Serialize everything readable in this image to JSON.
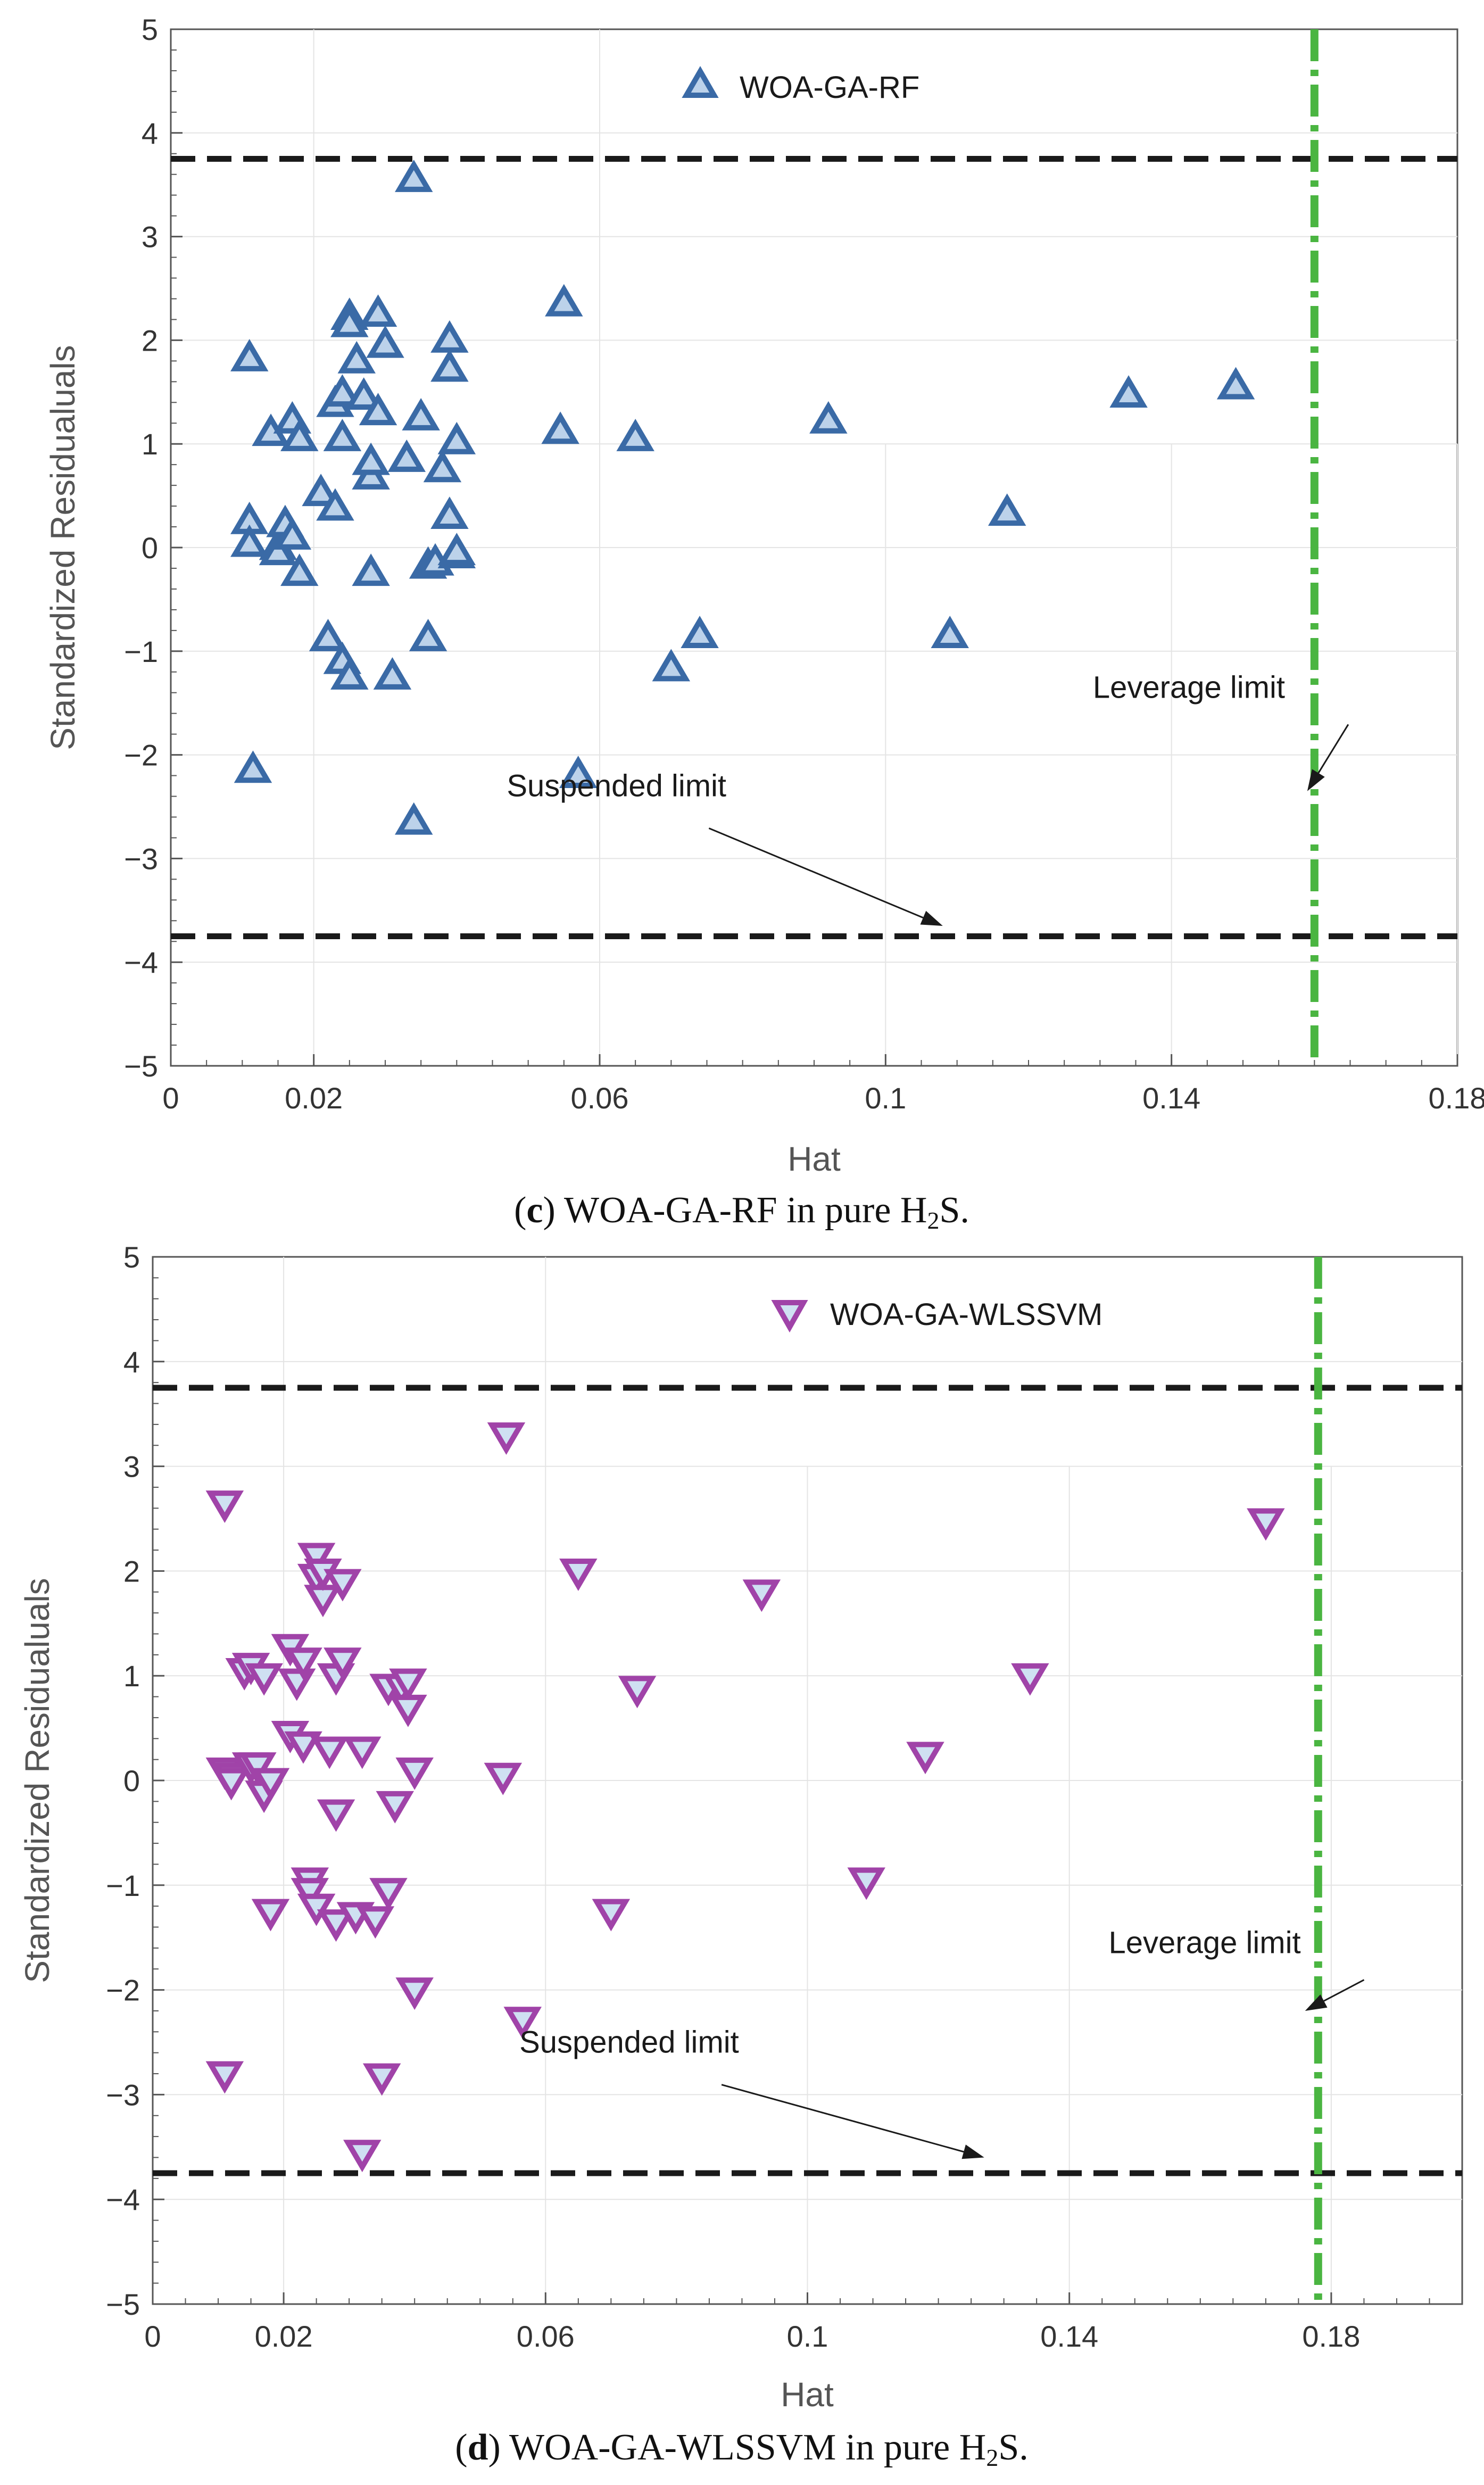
{
  "chart_data": [
    {
      "type": "scatter",
      "panel_label": "c",
      "caption_text": "WOA-GA-RF in pure H",
      "caption_sub": "2",
      "caption_tail": "S.",
      "xlabel": "Hat",
      "ylabel": "Standardized Residualuals",
      "xlim": [
        0,
        0.18
      ],
      "ylim": [
        -5,
        5
      ],
      "xticks": [
        0,
        0.02,
        0.06,
        0.1,
        0.14,
        0.18
      ],
      "xtick_labels": [
        "0",
        "0.02",
        "0.06",
        "0.1",
        "0.14",
        "0.18"
      ],
      "yticks": [
        -5,
        -4,
        -3,
        -2,
        -1,
        0,
        1,
        2,
        3,
        4,
        5
      ],
      "ytick_labels": [
        "−5",
        "−4",
        "−3",
        "−2",
        "−1",
        "0",
        "1",
        "2",
        "3",
        "4",
        "5"
      ],
      "grid": true,
      "legend_position": "top-center",
      "marker": "triangle-up",
      "color": "#3a6aa6",
      "series": [
        {
          "name": "WOA-GA-RF",
          "x": [
            0.011,
            0.011,
            0.011,
            0.0115,
            0.014,
            0.015,
            0.015,
            0.016,
            0.017,
            0.017,
            0.018,
            0.018,
            0.021,
            0.022,
            0.023,
            0.023,
            0.024,
            0.024,
            0.024,
            0.025,
            0.025,
            0.025,
            0.026,
            0.027,
            0.028,
            0.028,
            0.028,
            0.029,
            0.029,
            0.03,
            0.031,
            0.033,
            0.034,
            0.034,
            0.035,
            0.036,
            0.036,
            0.037,
            0.038,
            0.039,
            0.039,
            0.039,
            0.04,
            0.04,
            0.04,
            0.0545,
            0.055,
            0.057,
            0.065,
            0.07,
            0.074,
            0.092,
            0.109,
            0.117,
            0.134,
            0.149
          ],
          "y": [
            1.82,
            0.25,
            0.03,
            -2.15,
            1.1,
            0.0,
            -0.05,
            0.22,
            1.22,
            0.1,
            1.05,
            -0.25,
            0.52,
            -0.88,
            0.38,
            1.38,
            1.48,
            1.05,
            -1.1,
            -1.25,
            2.22,
            2.15,
            1.8,
            1.45,
            0.68,
            0.82,
            -0.25,
            1.3,
            2.25,
            1.95,
            -1.25,
            0.85,
            3.55,
            -2.65,
            1.25,
            -0.88,
            -0.18,
            -0.15,
            0.75,
            2.0,
            1.72,
            0.3,
            1.02,
            -0.08,
            -0.05,
            1.12,
            2.35,
            -2.2,
            1.05,
            -1.17,
            -0.85,
            1.22,
            -0.85,
            0.33,
            1.47,
            1.55
          ]
        }
      ],
      "hlines": [
        3.75,
        -3.75
      ],
      "hline_color": "#1a1a1a",
      "vline": 0.16,
      "vline_color": "#4ab541",
      "annotations": [
        {
          "text": "Leverage limit",
          "tx": 0.129,
          "ty": -1.45,
          "ax": 0.159,
          "ay": -2.35
        },
        {
          "text": "Suspended limit",
          "tx": 0.047,
          "ty": -2.4,
          "ax": 0.108,
          "ay": -3.65
        }
      ]
    },
    {
      "type": "scatter",
      "panel_label": "d",
      "caption_text": "WOA-GA-WLSSVM in pure H",
      "caption_sub": "2",
      "caption_tail": "S.",
      "xlabel": "Hat",
      "ylabel": "Standardized Residualuals",
      "xlim": [
        0,
        0.2
      ],
      "ylim": [
        -5,
        5
      ],
      "xticks": [
        0,
        0.02,
        0.06,
        0.1,
        0.14,
        0.18
      ],
      "xtick_labels": [
        "0",
        "0.02",
        "0.06",
        "0.1",
        "0.14",
        "0.18"
      ],
      "yticks": [
        -5,
        -4,
        -3,
        -2,
        -1,
        0,
        1,
        2,
        3,
        4,
        5
      ],
      "ytick_labels": [
        "−5",
        "−4",
        "−3",
        "−2",
        "−1",
        "0",
        "1",
        "2",
        "3",
        "4",
        "5"
      ],
      "grid": true,
      "legend_position": "top-center",
      "marker": "triangle-down",
      "color": "#a043a8",
      "series": [
        {
          "name": "WOA-GA-WLSSVM",
          "x": [
            0.011,
            0.011,
            0.011,
            0.012,
            0.012,
            0.014,
            0.015,
            0.015,
            0.016,
            0.017,
            0.017,
            0.018,
            0.018,
            0.021,
            0.021,
            0.022,
            0.023,
            0.023,
            0.024,
            0.024,
            0.025,
            0.025,
            0.025,
            0.026,
            0.026,
            0.027,
            0.028,
            0.028,
            0.028,
            0.029,
            0.029,
            0.031,
            0.032,
            0.032,
            0.034,
            0.035,
            0.036,
            0.036,
            0.037,
            0.038,
            0.039,
            0.039,
            0.04,
            0.04,
            0.0535,
            0.054,
            0.0565,
            0.065,
            0.07,
            0.074,
            0.093,
            0.109,
            0.118,
            0.134,
            0.17
          ],
          "y": [
            2.65,
            0.1,
            -2.8,
            0.05,
            0.0,
            1.05,
            1.1,
            0.15,
            0.15,
            1.0,
            -0.12,
            -1.25,
            0.0,
            0.45,
            1.28,
            0.95,
            1.15,
            0.35,
            -0.95,
            -1.05,
            2.15,
            1.95,
            -1.2,
            1.75,
            2.0,
            0.3,
            -1.35,
            1.0,
            -0.3,
            1.15,
            1.9,
            -1.28,
            0.3,
            -3.55,
            -1.32,
            -2.82,
            0.9,
            -1.05,
            -0.22,
            0.9,
            0.95,
            0.7,
            0.1,
            -2.0,
            0.05,
            3.3,
            -2.28,
            2.0,
            -1.25,
            0.88,
            1.8,
            -0.95,
            0.25,
            1.0,
            2.48
          ]
        }
      ],
      "hlines": [
        3.75,
        -3.75
      ],
      "hline_color": "#1a1a1a",
      "vline": 0.178,
      "vline_color": "#4ab541",
      "annotations": [
        {
          "text": "Leverage limit",
          "tx": 0.146,
          "ty": -1.65,
          "ax": 0.176,
          "ay": -2.2
        },
        {
          "text": "Suspended limit",
          "tx": 0.056,
          "ty": -2.6,
          "ax": 0.127,
          "ay": -3.6
        }
      ]
    }
  ]
}
